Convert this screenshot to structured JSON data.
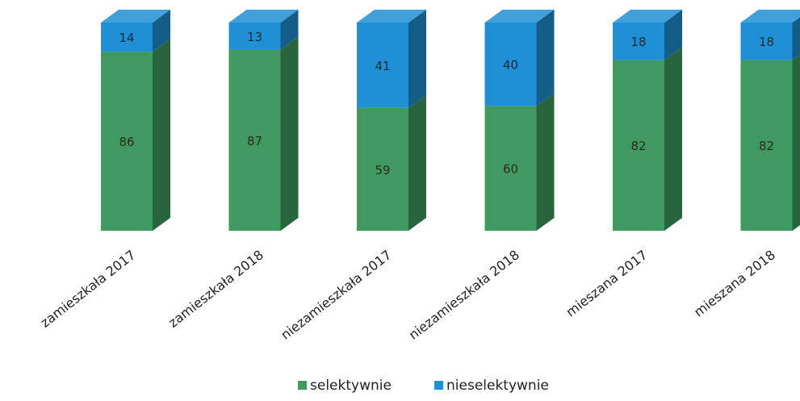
{
  "chart_data": {
    "type": "bar",
    "stacked": true,
    "three_d": true,
    "categories": [
      "zamieszkała 2017",
      "zamieszkała 2018",
      "niezamieszkała 2017",
      "niezamieszkała 2018",
      "mieszana 2017",
      "mieszana 2018"
    ],
    "series": [
      {
        "name": "selektywnie",
        "color": "#3e9a5e",
        "values": [
          86,
          87,
          59,
          60,
          82,
          82
        ]
      },
      {
        "name": "nieselektywnie",
        "color": "#1f8fd6",
        "values": [
          14,
          13,
          41,
          40,
          18,
          18
        ]
      }
    ],
    "ylim": [
      0,
      100
    ],
    "grid": false,
    "legend_position": "bottom"
  }
}
